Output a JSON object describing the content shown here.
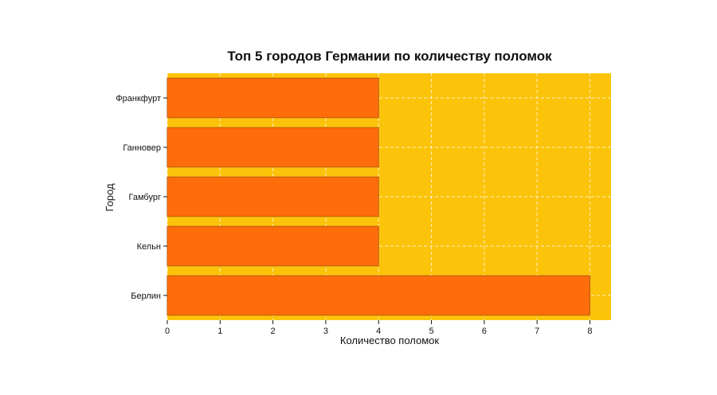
{
  "chart_data": {
    "type": "bar",
    "orientation": "horizontal",
    "title": "Топ 5 городов Германии по количеству поломок",
    "xlabel": "Количество поломок",
    "ylabel": "Город",
    "categories": [
      "Франкфурт",
      "Ганновер",
      "Гамбург",
      "Кельн",
      "Берлин"
    ],
    "values": [
      4,
      4,
      4,
      4,
      8
    ],
    "xlim": [
      0,
      8.4
    ],
    "xticks": [
      "0",
      "1",
      "2",
      "3",
      "4",
      "5",
      "6",
      "7",
      "8"
    ],
    "grid": true,
    "colors": {
      "plot_background": "#FCC30B",
      "bar_fill": "#FF6D0A",
      "bar_stroke": "#B85A12",
      "grid": "#FFFFFF",
      "text": "#111111"
    }
  }
}
